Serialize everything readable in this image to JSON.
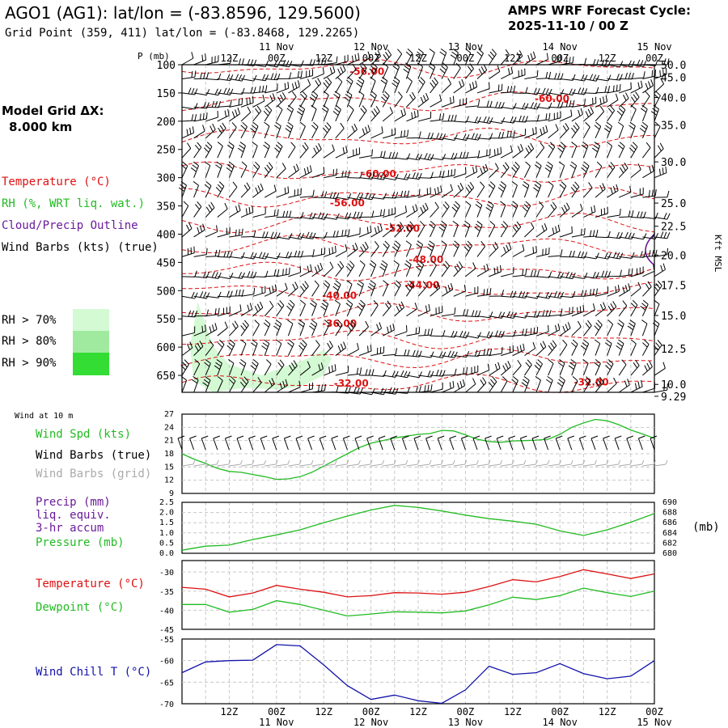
{
  "header": {
    "title": "AGO1 (AG1):  lat/lon = (-83.8596, 129.5600)",
    "subtitle": "Grid Point (359, 411) lat/lon = (-83.8468, 129.2265)",
    "cycle_line1": "AMPS WRF Forecast Cycle:",
    "cycle_line2": "2025-11-10 / 00  Z",
    "model_grid_line1": "Model Grid ΔX:",
    "model_grid_line2": "8.000 km"
  },
  "legend": {
    "temperature": "Temperature (°C)",
    "rh": "RH (%, WRT liq. wat.)",
    "cloud": "Cloud/Precip Outline",
    "wind": "Wind Barbs (kts) (true)",
    "rh_keys": [
      {
        "label": "RH > 70%",
        "color": "#d4fad4"
      },
      {
        "label": "RH > 80%",
        "color": "#a0eaa0"
      },
      {
        "label": "RH > 90%",
        "color": "#33dd33"
      }
    ]
  },
  "colors": {
    "temp": "#dd1111",
    "rh": "#22bb22",
    "cloud": "#6a1b9a",
    "blue": "#1111aa",
    "grey": "#aaaaaa"
  },
  "time_axis": {
    "top_labels": [
      {
        "hour": 12,
        "text": "12Z"
      },
      {
        "hour": 24,
        "text": "00Z"
      },
      {
        "hour": 36,
        "text": "12Z"
      },
      {
        "hour": 48,
        "text": "00Z"
      },
      {
        "hour": 60,
        "text": "12Z"
      },
      {
        "hour": 72,
        "text": "00Z"
      },
      {
        "hour": 84,
        "text": "12Z"
      },
      {
        "hour": 96,
        "text": "00Z"
      },
      {
        "hour": 108,
        "text": "12Z"
      },
      {
        "hour": 120,
        "text": "00Z"
      }
    ],
    "date_labels": [
      {
        "hour": 24,
        "text": "11 Nov"
      },
      {
        "hour": 48,
        "text": "12 Nov"
      },
      {
        "hour": 72,
        "text": "13 Nov"
      },
      {
        "hour": 96,
        "text": "14 Nov"
      },
      {
        "hour": 120,
        "text": "15 Nov"
      }
    ]
  },
  "chart_data": [
    {
      "id": "cross_section",
      "type": "heatmap",
      "title": "P (mb)",
      "xlabel": "forecast hour",
      "ylabel": "P (mb)",
      "xlim": [
        0,
        120
      ],
      "ylim": [
        100,
        680
      ],
      "pressure_ticks": [
        "100",
        "150",
        "200",
        "250",
        "300",
        "350",
        "400",
        "450",
        "500",
        "550",
        "600",
        "650"
      ],
      "height_ticks": [
        {
          "p": 100,
          "text": "50.0"
        },
        {
          "p": 122,
          "text": "45.0"
        },
        {
          "p": 158,
          "text": "40.0"
        },
        {
          "p": 207,
          "text": "35.0"
        },
        {
          "p": 272,
          "text": "30.0"
        },
        {
          "p": 345,
          "text": "25.0"
        },
        {
          "p": 386,
          "text": "22.5"
        },
        {
          "p": 437,
          "text": "20.0"
        },
        {
          "p": 490,
          "text": "17.5"
        },
        {
          "p": 544,
          "text": "15.0"
        },
        {
          "p": 603,
          "text": "12.5"
        },
        {
          "p": 666,
          "text": "10.0"
        },
        {
          "p": 687,
          "text": "9.29"
        }
      ],
      "right_axis_label": "Kft MSL",
      "temperature_labels": [
        {
          "t": 47,
          "p": 112,
          "text": "-56.00"
        },
        {
          "t": 94,
          "p": 160,
          "text": "-60.00"
        },
        {
          "t": 50,
          "p": 293,
          "text": "-60.00"
        },
        {
          "t": 42,
          "p": 345,
          "text": "-56.00"
        },
        {
          "t": 56,
          "p": 390,
          "text": "-52.00"
        },
        {
          "t": 62,
          "p": 445,
          "text": "-48.00"
        },
        {
          "t": 61,
          "p": 490,
          "text": "-44.00"
        },
        {
          "t": 40,
          "p": 509,
          "text": "-40.00"
        },
        {
          "t": 40,
          "p": 558,
          "text": "-36.00"
        },
        {
          "t": 43,
          "p": 664,
          "text": "-32.00"
        },
        {
          "t": 104,
          "p": 662,
          "text": "-32.00"
        }
      ]
    },
    {
      "id": "wind10m",
      "type": "line",
      "panel_title": "Wind at 10 m",
      "labels": [
        "Wind Spd (kts)",
        "Wind Barbs (true)",
        "Wind Barbs (grid)"
      ],
      "yticks": [
        "27",
        "24",
        "21",
        "18",
        "15",
        "12",
        "9"
      ],
      "ylim": [
        9,
        27
      ],
      "x": [
        0,
        3,
        6,
        9,
        12,
        15,
        18,
        21,
        24,
        27,
        30,
        33,
        36,
        39,
        42,
        45,
        48,
        51,
        54,
        57,
        60,
        63,
        66,
        69,
        72,
        75,
        78,
        81,
        84,
        87,
        90,
        93,
        96,
        99,
        102,
        105,
        108,
        111,
        114,
        117,
        120
      ],
      "series": [
        {
          "name": "Wind Spd (kts)",
          "values": [
            18,
            16.8,
            15.8,
            14.7,
            14.0,
            13.8,
            13.3,
            12.8,
            12.2,
            12.3,
            12.8,
            13.8,
            15.2,
            16.6,
            18.0,
            19.4,
            20.4,
            21.0,
            21.6,
            22.0,
            22.4,
            22.6,
            23.3,
            23.2,
            22.3,
            21.3,
            20.8,
            20.6,
            20.9,
            21.0,
            21.1,
            21.3,
            22.4,
            24.0,
            25.0,
            25.8,
            25.5,
            24.6,
            23.4,
            22.5,
            21.5
          ]
        }
      ]
    },
    {
      "id": "precip_pressure",
      "type": "line",
      "labels": [
        "Precip (mm)",
        "liq. equiv.",
        "3-hr accum",
        "Pressure (mb)"
      ],
      "yticks_left": [
        "2.5",
        "2.0",
        "1.5",
        "1.0",
        "0.5",
        "0.0"
      ],
      "yticks_right": [
        "690",
        "688",
        "686",
        "684",
        "682",
        "680"
      ],
      "right_unit": "(mb)",
      "ylim_left": [
        0,
        2.5
      ],
      "ylim_right": [
        680,
        690
      ],
      "x": [
        0,
        6,
        12,
        18,
        24,
        30,
        36,
        42,
        48,
        54,
        60,
        66,
        72,
        78,
        84,
        90,
        96,
        102,
        108,
        114,
        120
      ],
      "series": [
        {
          "name": "Pressure (mb)",
          "values": [
            680.6,
            681.4,
            681.6,
            682.7,
            683.6,
            684.6,
            686.0,
            687.3,
            688.5,
            689.4,
            689.0,
            688.3,
            687.5,
            686.8,
            686.3,
            685.7,
            684.4,
            683.5,
            684.6,
            686.1,
            687.8
          ]
        }
      ]
    },
    {
      "id": "temp_dew",
      "type": "line",
      "labels": [
        "Temperature (°C)",
        "Dewpoint (°C)"
      ],
      "yticks": [
        "-30",
        "-35",
        "-40",
        "-45"
      ],
      "ylim": [
        -45,
        -27
      ],
      "x": [
        0,
        6,
        12,
        18,
        24,
        30,
        36,
        42,
        48,
        54,
        60,
        66,
        72,
        78,
        84,
        90,
        96,
        102,
        108,
        114,
        120
      ],
      "series": [
        {
          "name": "Temperature (°C)",
          "values": [
            -34,
            -34.5,
            -36.5,
            -35.5,
            -33.5,
            -34.5,
            -35.3,
            -36.5,
            -36.2,
            -35.4,
            -35.5,
            -35.8,
            -35.3,
            -33.8,
            -32,
            -32.6,
            -31.2,
            -29.4,
            -30.5,
            -31.7,
            -30.5
          ]
        },
        {
          "name": "Dewpoint (°C)",
          "values": [
            -38.5,
            -38.5,
            -40.5,
            -39.8,
            -37.5,
            -38.5,
            -40,
            -41.5,
            -41,
            -40.4,
            -40.5,
            -40.7,
            -40.2,
            -38.6,
            -36.6,
            -37.2,
            -36.2,
            -34.2,
            -35.4,
            -36.4,
            -35
          ]
        }
      ]
    },
    {
      "id": "wind_chill",
      "type": "line",
      "labels": [
        "Wind Chill T (°C)"
      ],
      "yticks": [
        "-55",
        "-60",
        "-65",
        "-70"
      ],
      "ylim": [
        -70,
        -55
      ],
      "x": [
        0,
        6,
        12,
        18,
        24,
        30,
        36,
        42,
        48,
        54,
        60,
        66,
        72,
        78,
        84,
        90,
        96,
        102,
        108,
        114,
        120
      ],
      "series": [
        {
          "name": "Wind Chill T (°C)",
          "values": [
            -62.8,
            -60.3,
            -60.0,
            -59.9,
            -56.3,
            -56.6,
            -61,
            -65.8,
            -69,
            -68,
            -69.3,
            -69.9,
            -66.8,
            -61.3,
            -63.2,
            -62.8,
            -60.7,
            -63,
            -64.2,
            -63.6,
            -60
          ]
        }
      ]
    }
  ]
}
